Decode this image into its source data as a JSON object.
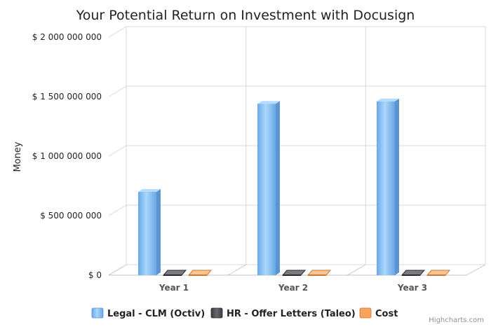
{
  "chart_data": {
    "type": "bar",
    "title": "Your Potential Return on Investment with Docusign",
    "ylabel": "Money",
    "xlabel": "",
    "categories": [
      "Year 1",
      "Year 2",
      "Year 3"
    ],
    "ylim": [
      0,
      2000000000
    ],
    "yticks": [
      0,
      500000000,
      1000000000,
      1500000000,
      2000000000
    ],
    "ytick_labels": [
      "$ 0",
      "$ 500 000 000",
      "$ 1 000 000 000",
      "$ 1 500 000 000",
      "$ 2 000 000 000"
    ],
    "grid": true,
    "legend_position": "bottom",
    "series": [
      {
        "name": "Legal - CLM (Octiv)",
        "color": "#7cb5ec",
        "values": [
          700000000,
          1440000000,
          1460000000
        ]
      },
      {
        "name": "HR - Offer Letters (Taleo)",
        "color": "#434348",
        "values": [
          1000000,
          1000000,
          1000000
        ]
      },
      {
        "name": "Cost",
        "color": "#f7a35c",
        "values": [
          0,
          0,
          0
        ]
      }
    ]
  },
  "credits": "Highcharts.com"
}
